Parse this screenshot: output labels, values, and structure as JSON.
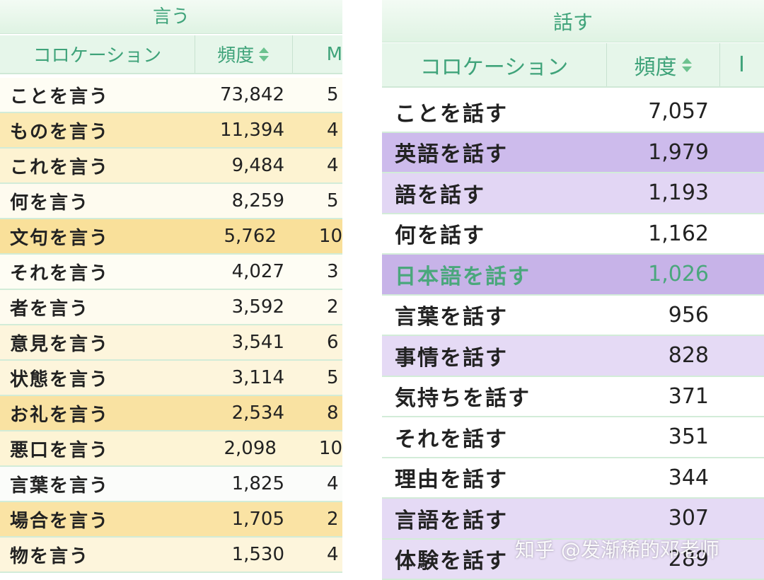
{
  "left_table": {
    "title": "言う",
    "headers": {
      "collocation": "コロケーション",
      "frequency": "頻度",
      "third": "M"
    },
    "rows": [
      {
        "phrase": "ことを言う",
        "freq": "73,842",
        "third": "5",
        "bg": "#fefdf4"
      },
      {
        "phrase": "ものを言う",
        "freq": "11,394",
        "third": "4",
        "bg": "#fbe9b3"
      },
      {
        "phrase": "これを言う",
        "freq": "9,484",
        "third": "4",
        "bg": "#fdf3d2"
      },
      {
        "phrase": "何を言う",
        "freq": "8,259",
        "third": "5",
        "bg": "#fefbef"
      },
      {
        "phrase": "文句を言う",
        "freq": "5,762",
        "third": "10",
        "bg": "#f9e09a"
      },
      {
        "phrase": "それを言う",
        "freq": "4,027",
        "third": "3",
        "bg": "#fefdf4"
      },
      {
        "phrase": "者を言う",
        "freq": "3,592",
        "third": "2",
        "bg": "#fefbef"
      },
      {
        "phrase": "意見を言う",
        "freq": "3,541",
        "third": "6",
        "bg": "#fdf5dc"
      },
      {
        "phrase": "状態を言う",
        "freq": "3,114",
        "third": "5",
        "bg": "#fdf5dc"
      },
      {
        "phrase": "お礼を言う",
        "freq": "2,534",
        "third": "8",
        "bg": "#f9e2a2"
      },
      {
        "phrase": "悪口を言う",
        "freq": "2,098",
        "third": "10",
        "bg": "#fdf4d5"
      },
      {
        "phrase": "言葉を言う",
        "freq": "1,825",
        "third": "4",
        "bg": "#fbfcfa"
      },
      {
        "phrase": "場合を言う",
        "freq": "1,705",
        "third": "2",
        "bg": "#fae3a4"
      },
      {
        "phrase": "物を言う",
        "freq": "1,530",
        "third": "4",
        "bg": "#fdf5dc"
      }
    ]
  },
  "right_table": {
    "title": "話す",
    "headers": {
      "collocation": "コロケーション",
      "frequency": "頻度",
      "third": "I"
    },
    "rows": [
      {
        "phrase": "ことを話す",
        "freq": "7,057",
        "bg": "#ffffff",
        "highlight": false
      },
      {
        "phrase": "英語を話す",
        "freq": "1,979",
        "bg": "#cdbbec",
        "highlight": false
      },
      {
        "phrase": "語を話す",
        "freq": "1,193",
        "bg": "#e2d6f4",
        "highlight": false
      },
      {
        "phrase": "何を話す",
        "freq": "1,162",
        "bg": "#ffffff",
        "highlight": false
      },
      {
        "phrase": "日本語を話す",
        "freq": "1,026",
        "bg": "#c7b3e8",
        "highlight": true
      },
      {
        "phrase": "言葉を話す",
        "freq": "956",
        "bg": "#ffffff",
        "highlight": false
      },
      {
        "phrase": "事情を話す",
        "freq": "828",
        "bg": "#e5daf5",
        "highlight": false
      },
      {
        "phrase": "気持ちを話す",
        "freq": "371",
        "bg": "#ffffff",
        "highlight": false
      },
      {
        "phrase": "それを話す",
        "freq": "351",
        "bg": "#ffffff",
        "highlight": false
      },
      {
        "phrase": "理由を話す",
        "freq": "344",
        "bg": "#ffffff",
        "highlight": false
      },
      {
        "phrase": "言語を話す",
        "freq": "307",
        "bg": "#e5daf5",
        "highlight": false
      },
      {
        "phrase": "体験を話す",
        "freq": "289",
        "bg": "#e7ddf5",
        "highlight": false
      }
    ]
  },
  "watermark": "知乎 @发渐稀的邓老师",
  "colors": {
    "header_text": "#3fa37a",
    "sort_icon": "#6cc28f",
    "row_border": "#d2ecd8"
  }
}
